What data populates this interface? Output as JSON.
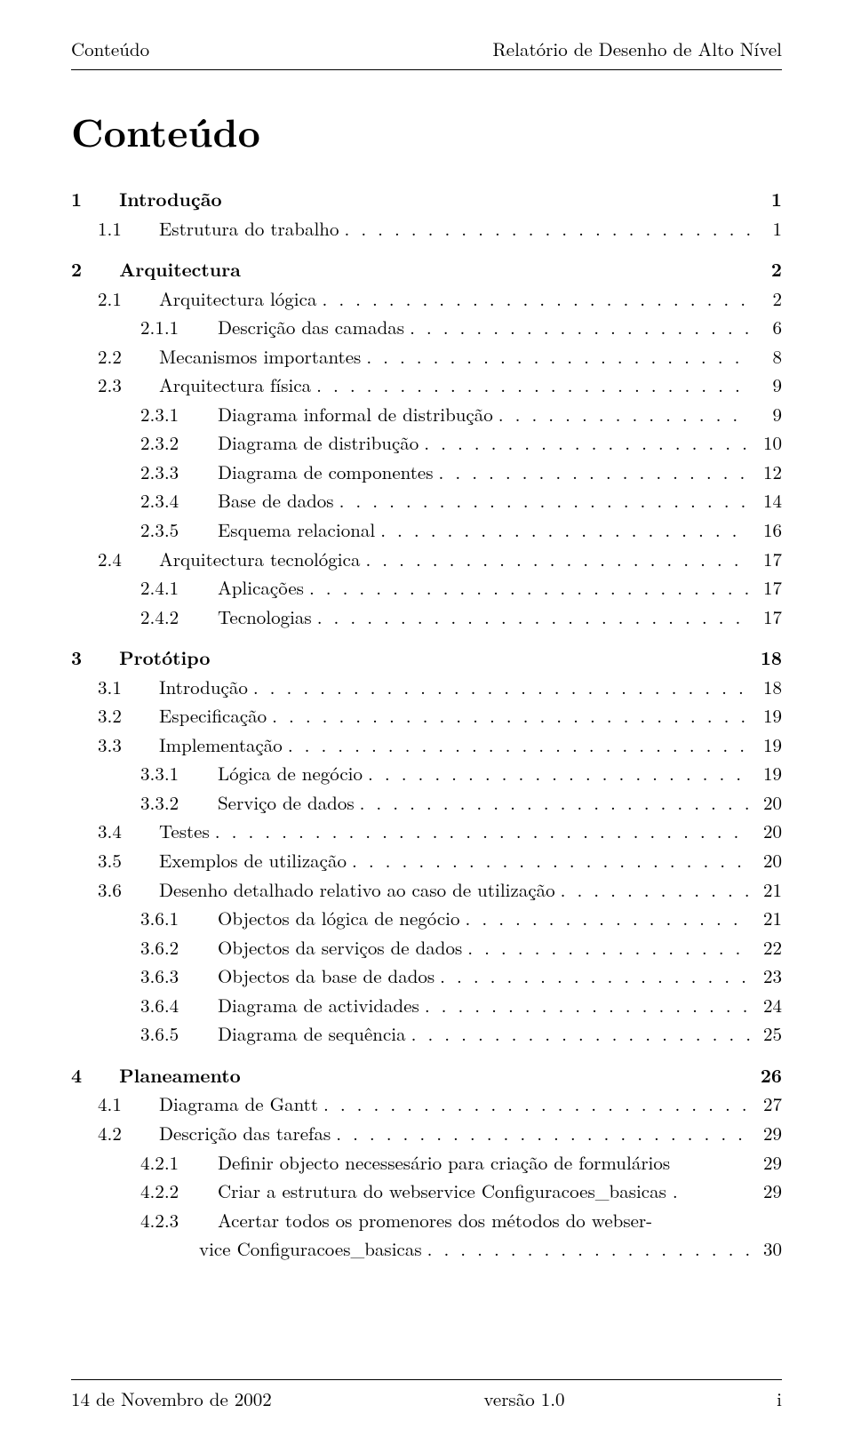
{
  "header": {
    "left": "Conteúdo",
    "right": "Relatório de Desenho de Alto Nível"
  },
  "title": "Conteúdo",
  "toc": [
    {
      "level": "chapter",
      "num": "1",
      "label": "Introdução",
      "page": "1",
      "dots": false
    },
    {
      "level": "section",
      "num": "1.1",
      "label": "Estrutura do trabalho",
      "page": "1",
      "dots": true
    },
    {
      "level": "chapter",
      "num": "2",
      "label": "Arquitectura",
      "page": "2",
      "dots": false
    },
    {
      "level": "section",
      "num": "2.1",
      "label": "Arquitectura lógica",
      "page": "2",
      "dots": true
    },
    {
      "level": "subsection",
      "num": "2.1.1",
      "label": "Descrição das camadas",
      "page": "6",
      "dots": true
    },
    {
      "level": "section",
      "num": "2.2",
      "label": "Mecanismos importantes",
      "page": "8",
      "dots": true
    },
    {
      "level": "section",
      "num": "2.3",
      "label": "Arquitectura física",
      "page": "9",
      "dots": true
    },
    {
      "level": "subsection",
      "num": "2.3.1",
      "label": "Diagrama informal de distribução",
      "page": "9",
      "dots": true
    },
    {
      "level": "subsection",
      "num": "2.3.2",
      "label": "Diagrama de distribução",
      "page": "10",
      "dots": true
    },
    {
      "level": "subsection",
      "num": "2.3.3",
      "label": "Diagrama de componentes",
      "page": "12",
      "dots": true
    },
    {
      "level": "subsection",
      "num": "2.3.4",
      "label": "Base de dados",
      "page": "14",
      "dots": true
    },
    {
      "level": "subsection",
      "num": "2.3.5",
      "label": "Esquema relacional",
      "page": "16",
      "dots": true
    },
    {
      "level": "section",
      "num": "2.4",
      "label": "Arquitectura tecnológica",
      "page": "17",
      "dots": true
    },
    {
      "level": "subsection",
      "num": "2.4.1",
      "label": "Aplicações",
      "page": "17",
      "dots": true
    },
    {
      "level": "subsection",
      "num": "2.4.2",
      "label": "Tecnologias",
      "page": "17",
      "dots": true
    },
    {
      "level": "chapter",
      "num": "3",
      "label": "Protótipo",
      "page": "18",
      "dots": false
    },
    {
      "level": "section",
      "num": "3.1",
      "label": "Introdução",
      "page": "18",
      "dots": true
    },
    {
      "level": "section",
      "num": "3.2",
      "label": "Especificação",
      "page": "19",
      "dots": true
    },
    {
      "level": "section",
      "num": "3.3",
      "label": "Implementação",
      "page": "19",
      "dots": true
    },
    {
      "level": "subsection",
      "num": "3.3.1",
      "label": "Lógica de negócio",
      "page": "19",
      "dots": true
    },
    {
      "level": "subsection",
      "num": "3.3.2",
      "label": "Serviço de dados",
      "page": "20",
      "dots": true
    },
    {
      "level": "section",
      "num": "3.4",
      "label": "Testes",
      "page": "20",
      "dots": true
    },
    {
      "level": "section",
      "num": "3.5",
      "label": "Exemplos de utilização",
      "page": "20",
      "dots": true
    },
    {
      "level": "section",
      "num": "3.6",
      "label": "Desenho detalhado relativo ao caso de utilização",
      "page": "21",
      "dots": true
    },
    {
      "level": "subsection",
      "num": "3.6.1",
      "label": "Objectos da lógica de negócio",
      "page": "21",
      "dots": true
    },
    {
      "level": "subsection",
      "num": "3.6.2",
      "label": "Objectos da serviços de dados",
      "page": "22",
      "dots": true
    },
    {
      "level": "subsection",
      "num": "3.6.3",
      "label": "Objectos da base de dados",
      "page": "23",
      "dots": true
    },
    {
      "level": "subsection",
      "num": "3.6.4",
      "label": "Diagrama de actividades",
      "page": "24",
      "dots": true
    },
    {
      "level": "subsection",
      "num": "3.6.5",
      "label": "Diagrama de sequência",
      "page": "25",
      "dots": true
    },
    {
      "level": "chapter",
      "num": "4",
      "label": "Planeamento",
      "page": "26",
      "dots": false
    },
    {
      "level": "section",
      "num": "4.1",
      "label": "Diagrama de Gantt",
      "page": "27",
      "dots": true
    },
    {
      "level": "section",
      "num": "4.2",
      "label": "Descrição das tarefas",
      "page": "29",
      "dots": true
    },
    {
      "level": "subsection",
      "num": "4.2.1",
      "label": "Definir objecto necessesário para criação de formulários",
      "page": "29",
      "dots": false
    },
    {
      "level": "subsection",
      "num": "4.2.2",
      "label": "Criar a estrutura do webservice Configuracoes_basicas .",
      "page": "29",
      "dots": false
    },
    {
      "level": "subsection-wrap",
      "num": "4.2.3",
      "label": "Acertar todos os promenores dos métodos do webser-",
      "label2": "vice Configuracoes_basicas",
      "page": "30",
      "dots": true
    }
  ],
  "footer": {
    "left": "14 de Novembro de 2002",
    "center": "versão 1.0",
    "right": "i"
  }
}
